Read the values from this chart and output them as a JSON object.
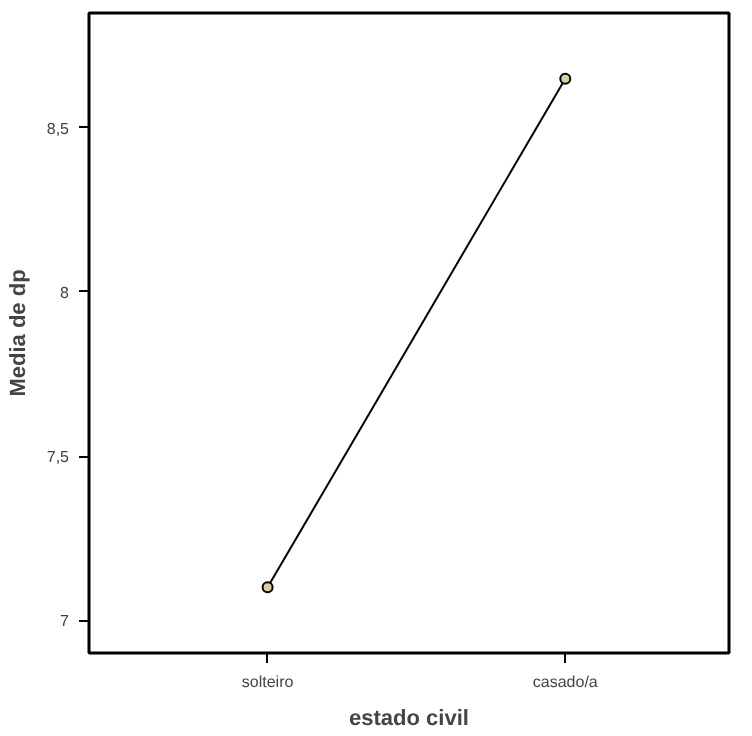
{
  "chart_data": {
    "type": "line",
    "xlabel": "estado civil",
    "ylabel": "Media de dp",
    "categories": [
      "solteiro",
      "casado/a"
    ],
    "series": [
      {
        "color": "#000000",
        "values": [
          7.1,
          8.65
        ]
      }
    ],
    "ylim": [
      6.9,
      8.85
    ],
    "yticks": [
      {
        "value": 7,
        "label": "7"
      },
      {
        "value": 7.5,
        "label": "7,5"
      },
      {
        "value": 8,
        "label": "8"
      },
      {
        "value": 8.5,
        "label": "8,5"
      }
    ],
    "marker": "circle",
    "grid": false
  }
}
